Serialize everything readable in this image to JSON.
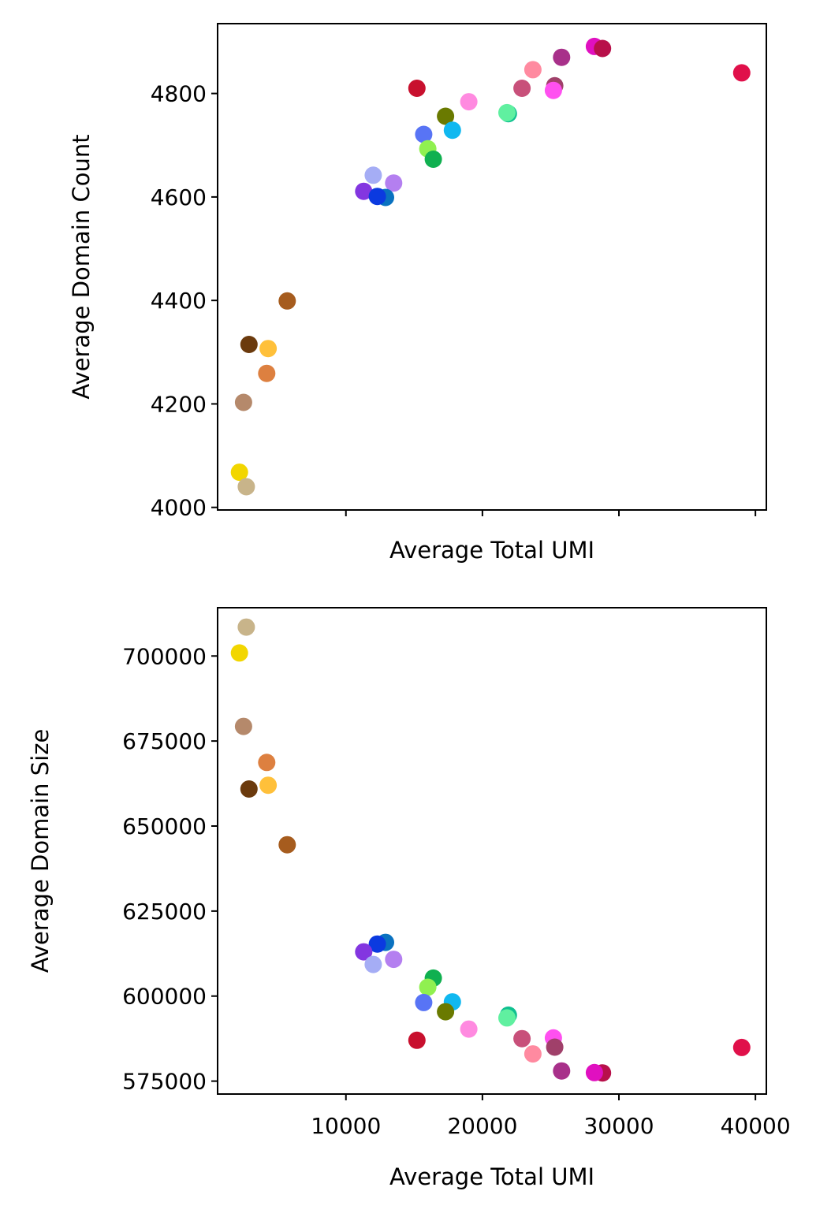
{
  "chart_data": [
    {
      "type": "scatter",
      "title": "",
      "xlabel": "Average Total UMI",
      "ylabel": "Average Domain Count",
      "xlim": [
        600,
        40800
      ],
      "ylim": [
        3995,
        4935
      ],
      "x_ticks": [
        10000,
        20000,
        30000,
        40000
      ],
      "x_tick_labels": [
        "",
        "",
        "",
        ""
      ],
      "y_ticks": [
        4000,
        4200,
        4400,
        4600,
        4800
      ],
      "y_tick_labels": [
        "4000",
        "4200",
        "4400",
        "4600",
        "4800"
      ],
      "grid": false,
      "points": [
        {
          "x": 2200,
          "y": 4068,
          "color": "#f2d600"
        },
        {
          "x": 2700,
          "y": 4040,
          "color": "#c8b48a"
        },
        {
          "x": 2500,
          "y": 4203,
          "color": "#b5896b"
        },
        {
          "x": 2900,
          "y": 4315,
          "color": "#6b3a0d"
        },
        {
          "x": 4300,
          "y": 4307,
          "color": "#ffc03a"
        },
        {
          "x": 4200,
          "y": 4259,
          "color": "#dd8040"
        },
        {
          "x": 5700,
          "y": 4399,
          "color": "#a65c1e"
        },
        {
          "x": 11300,
          "y": 4611,
          "color": "#8336e0"
        },
        {
          "x": 12000,
          "y": 4642,
          "color": "#a5adf5"
        },
        {
          "x": 13500,
          "y": 4627,
          "color": "#b47ff0"
        },
        {
          "x": 12900,
          "y": 4599,
          "color": "#0a72c0"
        },
        {
          "x": 12300,
          "y": 4601,
          "color": "#0b3ae0"
        },
        {
          "x": 15200,
          "y": 4810,
          "color": "#c8102e"
        },
        {
          "x": 15700,
          "y": 4721,
          "color": "#5874f5"
        },
        {
          "x": 16000,
          "y": 4693,
          "color": "#90f050"
        },
        {
          "x": 16400,
          "y": 4673,
          "color": "#10b050"
        },
        {
          "x": 17300,
          "y": 4756,
          "color": "#6a7a00"
        },
        {
          "x": 17800,
          "y": 4729,
          "color": "#10b8f0"
        },
        {
          "x": 19000,
          "y": 4784,
          "color": "#ff8ae0"
        },
        {
          "x": 21900,
          "y": 4761,
          "color": "#10c090"
        },
        {
          "x": 21800,
          "y": 4763,
          "color": "#60f0a0"
        },
        {
          "x": 22900,
          "y": 4810,
          "color": "#c8507a"
        },
        {
          "x": 23700,
          "y": 4846,
          "color": "#ff8aa0"
        },
        {
          "x": 25300,
          "y": 4815,
          "color": "#a0406a"
        },
        {
          "x": 25200,
          "y": 4806,
          "color": "#ff50f0"
        },
        {
          "x": 25800,
          "y": 4870,
          "color": "#a8308a"
        },
        {
          "x": 28200,
          "y": 4891,
          "color": "#e010c0"
        },
        {
          "x": 28800,
          "y": 4887,
          "color": "#b8104a"
        },
        {
          "x": 39000,
          "y": 4840,
          "color": "#e0104a"
        }
      ]
    },
    {
      "type": "scatter",
      "title": "",
      "xlabel": "Average Total UMI",
      "ylabel": "Average Domain Size",
      "xlim": [
        600,
        40800
      ],
      "ylim": [
        571200,
        714200
      ],
      "x_ticks": [
        10000,
        20000,
        30000,
        40000
      ],
      "x_tick_labels": [
        "10000",
        "20000",
        "30000",
        "40000"
      ],
      "y_ticks": [
        575000,
        600000,
        625000,
        650000,
        675000,
        700000
      ],
      "y_tick_labels": [
        "575000",
        "600000",
        "625000",
        "650000",
        "675000",
        "700000"
      ],
      "grid": false,
      "points": [
        {
          "x": 2700,
          "y": 708500,
          "color": "#c8b48a"
        },
        {
          "x": 2200,
          "y": 700900,
          "color": "#f2d600"
        },
        {
          "x": 2500,
          "y": 679300,
          "color": "#b5896b"
        },
        {
          "x": 4200,
          "y": 668700,
          "color": "#dd8040"
        },
        {
          "x": 4300,
          "y": 662000,
          "color": "#ffc03a"
        },
        {
          "x": 2900,
          "y": 660900,
          "color": "#6b3a0d"
        },
        {
          "x": 5700,
          "y": 644500,
          "color": "#a65c1e"
        },
        {
          "x": 12900,
          "y": 615800,
          "color": "#0a72c0"
        },
        {
          "x": 12300,
          "y": 615300,
          "color": "#0b3ae0"
        },
        {
          "x": 11300,
          "y": 613000,
          "color": "#8336e0"
        },
        {
          "x": 13500,
          "y": 610800,
          "color": "#b47ff0"
        },
        {
          "x": 12000,
          "y": 609300,
          "color": "#a5adf5"
        },
        {
          "x": 16400,
          "y": 605300,
          "color": "#10b050"
        },
        {
          "x": 16000,
          "y": 602600,
          "color": "#90f050"
        },
        {
          "x": 15700,
          "y": 598100,
          "color": "#5874f5"
        },
        {
          "x": 17800,
          "y": 598300,
          "color": "#10b8f0"
        },
        {
          "x": 17300,
          "y": 595400,
          "color": "#6a7a00"
        },
        {
          "x": 21900,
          "y": 594400,
          "color": "#10c090"
        },
        {
          "x": 21800,
          "y": 593600,
          "color": "#60f0a0"
        },
        {
          "x": 19000,
          "y": 590300,
          "color": "#ff8ae0"
        },
        {
          "x": 15200,
          "y": 587000,
          "color": "#c8102e"
        },
        {
          "x": 22900,
          "y": 587500,
          "color": "#c8507a"
        },
        {
          "x": 25200,
          "y": 587700,
          "color": "#ff50f0"
        },
        {
          "x": 25300,
          "y": 585000,
          "color": "#a0406a"
        },
        {
          "x": 23700,
          "y": 583000,
          "color": "#ff8aa0"
        },
        {
          "x": 39000,
          "y": 584900,
          "color": "#e0104a"
        },
        {
          "x": 25800,
          "y": 578000,
          "color": "#a8308a"
        },
        {
          "x": 28800,
          "y": 577400,
          "color": "#b8104a"
        },
        {
          "x": 28200,
          "y": 577500,
          "color": "#e010c0"
        }
      ]
    }
  ]
}
